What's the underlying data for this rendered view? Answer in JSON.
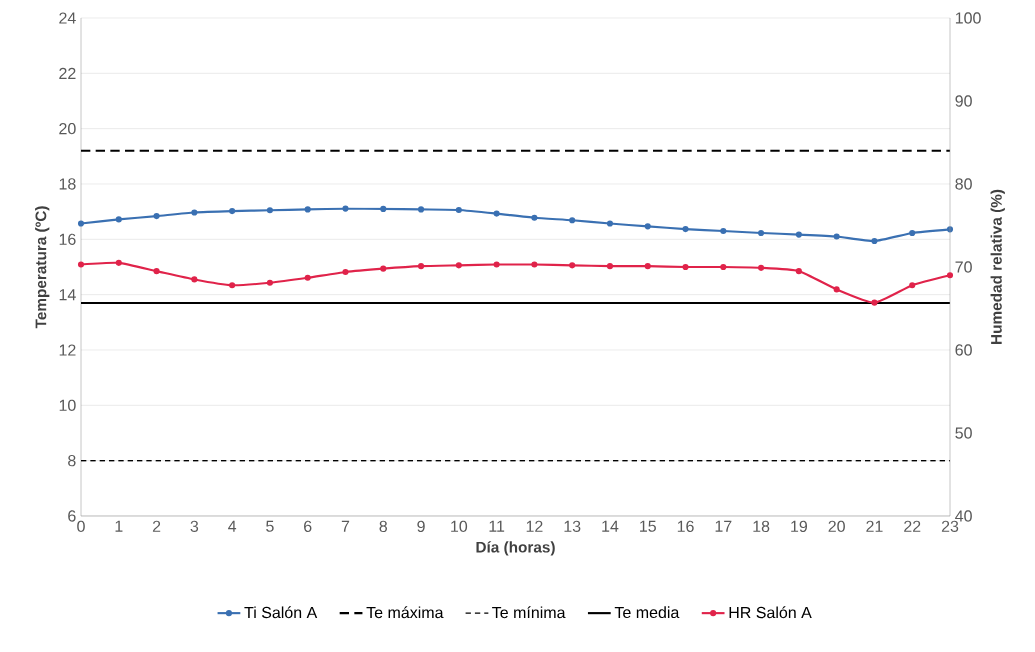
{
  "chart_data": {
    "type": "line",
    "xlabel": "Día (horas)",
    "ylabel": "Temperatura (ºC)",
    "y2label": "Humedad relativa (%)",
    "categories": [
      "0",
      "1",
      "2",
      "3",
      "4",
      "5",
      "6",
      "7",
      "8",
      "9",
      "10",
      "11",
      "12",
      "13",
      "14",
      "15",
      "16",
      "17",
      "18",
      "19",
      "20",
      "21",
      "22",
      "23"
    ],
    "series": [
      {
        "name": "Ti Salón A",
        "color": "#3a70b2",
        "marker": "circle",
        "line_style": "solid",
        "values": [
          16.57,
          16.72,
          16.84,
          16.97,
          17.02,
          17.05,
          17.08,
          17.11,
          17.1,
          17.08,
          17.06,
          16.93,
          16.78,
          16.69,
          16.57,
          16.47,
          16.37,
          16.3,
          16.23,
          16.17,
          16.1,
          15.94,
          16.23,
          16.36
        ]
      },
      {
        "name": "Te máxima",
        "color": "#000000",
        "marker": "none",
        "line_style": "dashed",
        "values": [
          19.2,
          19.2,
          19.2,
          19.2,
          19.2,
          19.2,
          19.2,
          19.2,
          19.2,
          19.2,
          19.2,
          19.2,
          19.2,
          19.2,
          19.2,
          19.2,
          19.2,
          19.2,
          19.2,
          19.2,
          19.2,
          19.2,
          19.2,
          19.2
        ]
      },
      {
        "name": "Te mínima",
        "color": "#000000",
        "marker": "none",
        "line_style": "dotted",
        "values": [
          8,
          8,
          8,
          8,
          8,
          8,
          8,
          8,
          8,
          8,
          8,
          8,
          8,
          8,
          8,
          8,
          8,
          8,
          8,
          8,
          8,
          8,
          8,
          8
        ]
      },
      {
        "name": "Te media",
        "color": "#000000",
        "marker": "none",
        "line_style": "solid",
        "values": [
          13.7,
          13.7,
          13.7,
          13.7,
          13.7,
          13.7,
          13.7,
          13.7,
          13.7,
          13.7,
          13.7,
          13.7,
          13.7,
          13.7,
          13.7,
          13.7,
          13.7,
          13.7,
          13.7,
          13.7,
          13.7,
          13.7,
          13.7,
          13.7
        ]
      },
      {
        "name": "HR Salón A",
        "color": "#e0234a",
        "marker": "circle",
        "line_style": "solid",
        "axis": "y2",
        "values": [
          70.3,
          70.5,
          69.5,
          68.5,
          67.8,
          68.1,
          68.7,
          69.4,
          69.8,
          70.1,
          70.2,
          70.3,
          70.3,
          70.2,
          70.1,
          70.1,
          70.0,
          70.0,
          69.9,
          69.5,
          67.3,
          65.7,
          67.8,
          69.0
        ]
      }
    ],
    "ylim": [
      6,
      24
    ],
    "yticks": [
      6,
      8,
      10,
      12,
      14,
      16,
      18,
      20,
      22,
      24
    ],
    "y2lim": [
      40,
      100
    ],
    "y2ticks": [
      40,
      50,
      60,
      70,
      80,
      90,
      100
    ],
    "grid": "y",
    "legend": "bottom"
  }
}
